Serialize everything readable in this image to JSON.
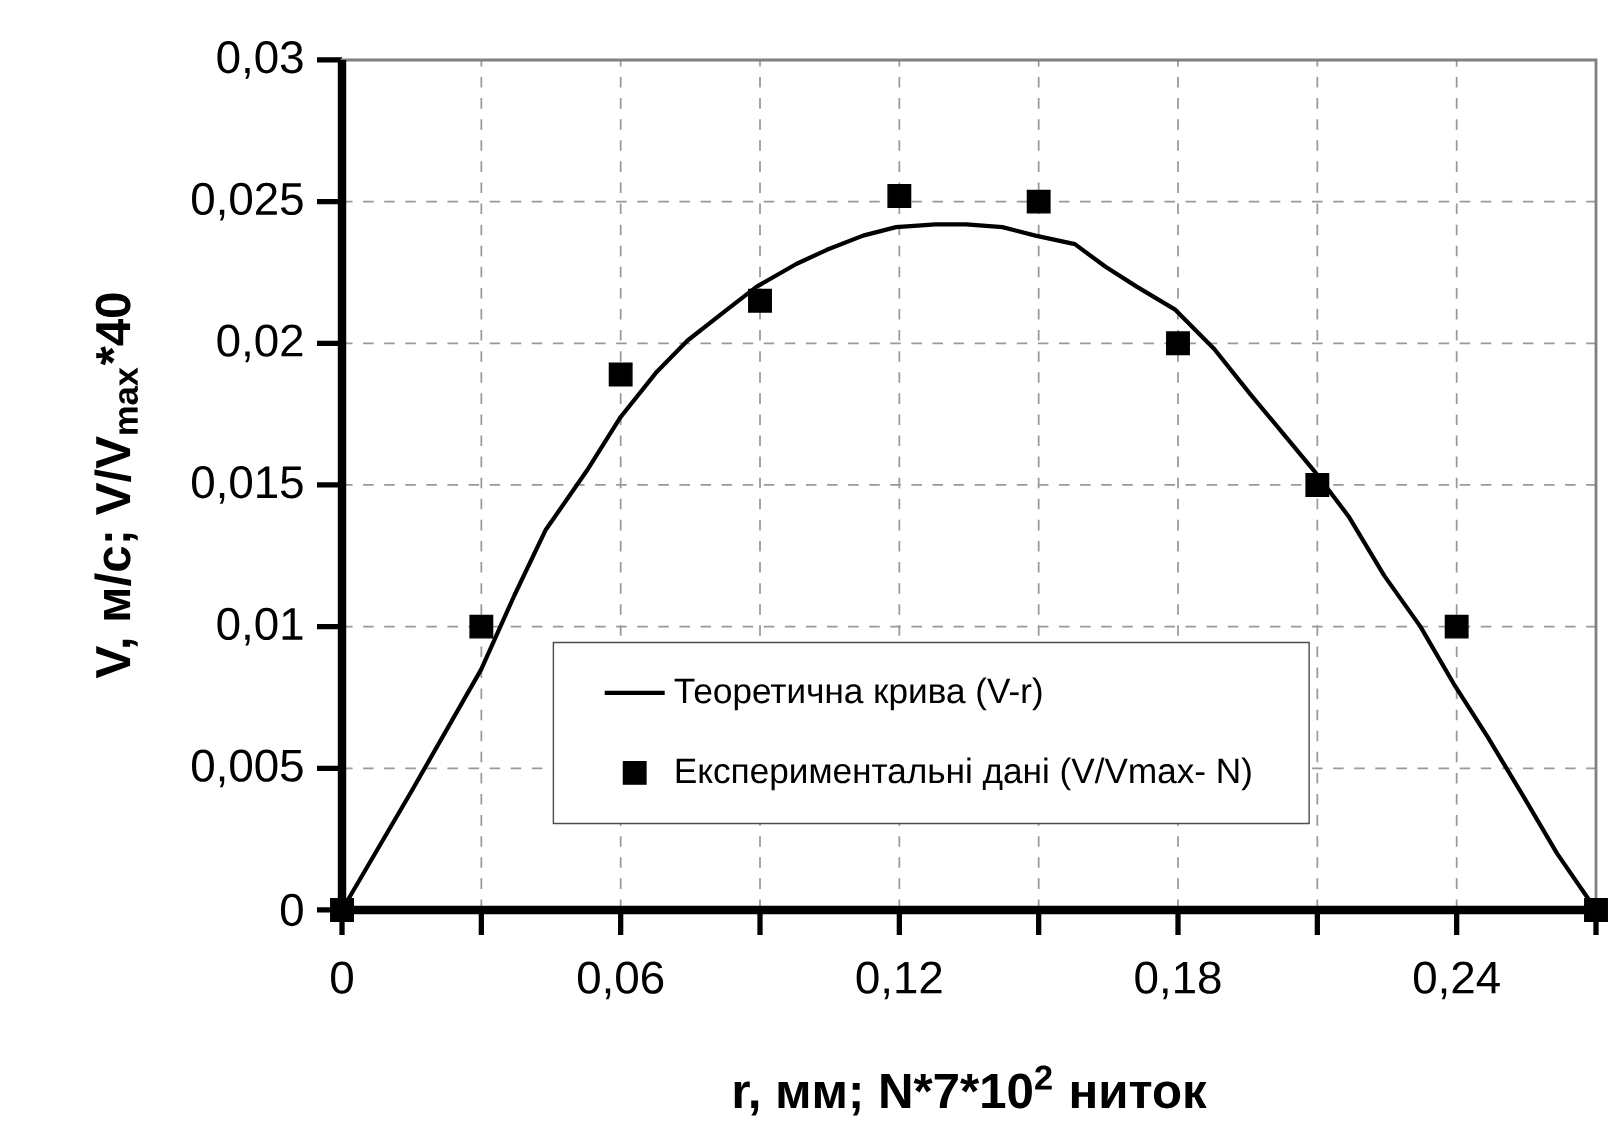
{
  "chart_data": {
    "type": "line",
    "xlabel": "r, мм; N*7*10$^{2}$ ниток",
    "ylabel": "V, м/с; V/V$_{max}$*40",
    "xlim": [
      0,
      0.27
    ],
    "ylim": [
      0,
      0.03
    ],
    "xticks": [
      0,
      {
        "value": 0.03,
        "label": null
      },
      {
        "value": 0.06,
        "label": "0,06"
      },
      {
        "value": 0.09,
        "label": null
      },
      {
        "value": 0.12,
        "label": "0,12"
      },
      {
        "value": 0.15,
        "label": null
      },
      {
        "value": 0.18,
        "label": "0,18"
      },
      {
        "value": 0.21,
        "label": null
      },
      {
        "value": 0.24,
        "label": "0,24"
      },
      {
        "value": 0.27,
        "label": null
      }
    ],
    "yticks": [
      0,
      {
        "value": 0.005,
        "label": "0,005"
      },
      {
        "value": 0.01,
        "label": "0,01"
      },
      {
        "value": 0.015,
        "label": "0,015"
      },
      {
        "value": 0.02,
        "label": "0,02"
      },
      {
        "value": 0.025,
        "label": "0,025"
      },
      {
        "value": 0.03,
        "label": "0,03"
      }
    ],
    "grid": true,
    "legend": "bottom",
    "series": [
      {
        "name": "Теоретична крива (V-r)",
        "color": "#000000",
        "line_style": "solid",
        "x": [
          0,
          0.015,
          0.03,
          0.0371,
          0.0438,
          0.0527,
          0.06,
          0.0678,
          0.0744,
          0.0822,
          0.0893,
          0.0978,
          0.1044,
          0.1122,
          0.1193,
          0.1278,
          0.1344,
          0.1422,
          0.1493,
          0.1578,
          0.1644,
          0.1711,
          0.1793,
          0.1878,
          0.1956,
          0.2022,
          0.2093,
          0.2167,
          0.2244,
          0.2322,
          0.2393,
          0.2467,
          0.2544,
          0.2616,
          0.27
        ],
        "values": [
          0,
          0.0042,
          0.0085,
          0.0111,
          0.0134,
          0.0155,
          0.0174,
          0.019,
          0.0201,
          0.0211,
          0.022,
          0.0228,
          0.0233,
          0.0238,
          0.0241,
          0.0242,
          0.0242,
          0.0241,
          0.0238,
          0.0235,
          0.0227,
          0.022,
          0.0212,
          0.0198,
          0.0182,
          0.0169,
          0.0155,
          0.0139,
          0.0118,
          0.01,
          0.008,
          0.0061,
          0.004,
          0.002,
          0
        ]
      },
      {
        "name": "Експериментальні дані (V/Vmax- N)",
        "type": "scatter",
        "color": "#000000",
        "marker": "square",
        "x": [
          0,
          0.03,
          0.06,
          0.09,
          0.12,
          0.15,
          0.18,
          0.21,
          0.24,
          0.27
        ],
        "values": [
          0,
          0.01,
          0.0189,
          0.0215,
          0.0252,
          0.025,
          0.02,
          0.015,
          0.01,
          0
        ]
      }
    ]
  }
}
